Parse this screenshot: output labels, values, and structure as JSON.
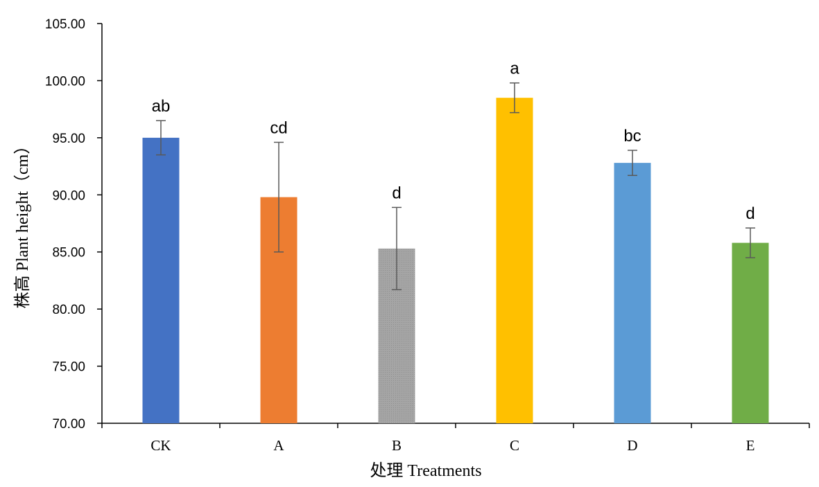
{
  "chart_data": {
    "type": "bar",
    "title": "",
    "xlabel": "处理 Treatments",
    "ylabel": "株高 Plant height（cm）",
    "categories": [
      "CK",
      "A",
      "B",
      "C",
      "D",
      "E"
    ],
    "values": [
      95.0,
      89.8,
      85.3,
      98.5,
      92.8,
      85.8
    ],
    "errors": [
      1.5,
      4.8,
      3.6,
      1.3,
      1.1,
      1.3
    ],
    "significance_labels": [
      "ab",
      "cd",
      "d",
      "a",
      "bc",
      "d"
    ],
    "colors": [
      "#4472C4",
      "#ED7D31",
      "#A5A5A5",
      "#FFC000",
      "#5B9BD5",
      "#70AD47"
    ],
    "ylim": [
      70,
      105
    ],
    "yticks": [
      70,
      75,
      80,
      85,
      90,
      95,
      100,
      105
    ],
    "ytick_labels": [
      "70.00",
      "75.00",
      "80.00",
      "85.00",
      "90.00",
      "95.00",
      "100.00",
      "105.00"
    ],
    "grid": false,
    "legend": "none"
  }
}
